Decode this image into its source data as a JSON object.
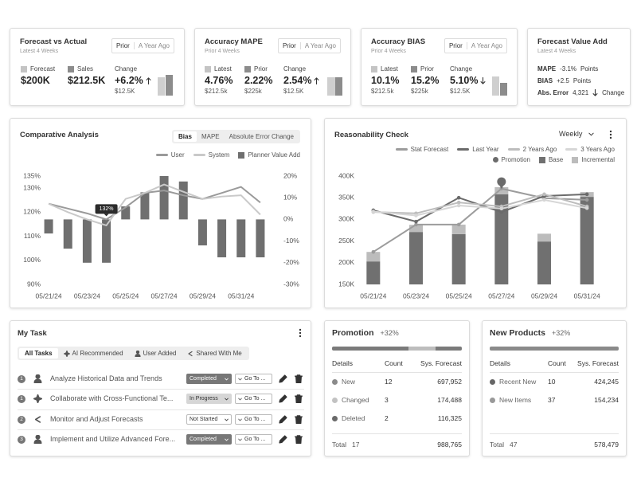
{
  "kpi_cards": [
    {
      "title": "Forecast vs Actual",
      "subtitle": "Latest 4 Weeks",
      "toggle": [
        "Prior",
        "A Year Ago"
      ],
      "metrics": [
        {
          "label": "Forecast",
          "value": "$200K"
        },
        {
          "label": "Sales",
          "value": "$212.5K"
        }
      ],
      "change": {
        "label": "Change",
        "value": "+6.2%",
        "sub": "$12.5K"
      }
    },
    {
      "title": "Accuracy MAPE",
      "subtitle": "Prior 4 Weeks",
      "toggle": [
        "Prior",
        "A Year Ago"
      ],
      "metrics": [
        {
          "label": "Latest",
          "value": "4.76%",
          "sub": "$212.5k"
        },
        {
          "label": "Prior",
          "value": "2.22%",
          "sub": "$225k"
        }
      ],
      "change": {
        "label": "Change",
        "value": "2.54%",
        "sub": "$12.5K"
      }
    },
    {
      "title": "Accuracy BIAS",
      "subtitle": "Prior 4 Weeks",
      "toggle": [
        "Prior",
        "A Year Ago"
      ],
      "metrics": [
        {
          "label": "Latest",
          "value": "10.1%",
          "sub": "$212.5k"
        },
        {
          "label": "Prior",
          "value": "15.2%",
          "sub": "$225k"
        }
      ],
      "change": {
        "label": "Change",
        "value": "5.10%",
        "sub": "$12.5K"
      }
    }
  ],
  "value_add": {
    "title": "Forecast Value Add",
    "subtitle": "Latest 4 Weeks",
    "rows": [
      {
        "label": "MAPE",
        "value": "-3.1%",
        "unit": "Points"
      },
      {
        "label": "BIAS",
        "value": "+2.5",
        "unit": "Points"
      },
      {
        "label": "Abs. Error",
        "value": "4,321",
        "unit": "Change"
      }
    ]
  },
  "comparative": {
    "title": "Comparative Analysis",
    "tabs": [
      "Bias",
      "MAPE",
      "Absolute Error Change"
    ],
    "chart": {
      "type": "combo",
      "categories": [
        "05/21/24",
        null,
        "05/23/24",
        null,
        "05/25/24",
        null,
        "05/27/24",
        null,
        "05/29/24",
        null,
        "05/31/24",
        null
      ],
      "ylim": [
        90,
        135
      ],
      "yticks": [
        {
          "value": 90,
          "label": "90%"
        },
        {
          "value": 100,
          "label": "100%"
        },
        {
          "value": 110,
          "label": "110%"
        },
        {
          "value": 120,
          "label": "120%"
        },
        {
          "value": 130,
          "label": "130%"
        },
        {
          "value": 135,
          "label": "135%"
        }
      ],
      "y2lim": [
        -30,
        20
      ],
      "y2ticks": [
        {
          "value": -30,
          "label": "-30%"
        },
        {
          "value": -20,
          "label": "-20%"
        },
        {
          "value": -10,
          "label": "-10%"
        },
        {
          "value": 0,
          "label": "0%"
        },
        {
          "value": 10,
          "label": "10%"
        },
        {
          "value": 20,
          "label": "20%"
        }
      ],
      "grid": false,
      "series": [
        {
          "name": "User",
          "type": "line",
          "color": "#9a9a9a",
          "values": [
            123.5,
            121.5,
            119.5,
            117,
            122,
            128,
            129,
            127,
            125.5,
            128,
            130.5,
            124
          ]
        },
        {
          "name": "System",
          "type": "line",
          "color": "#c9c9c9",
          "values": [
            123.5,
            120,
            117,
            114.5,
            125.5,
            128,
            131.5,
            128.5,
            125.5,
            126.5,
            127,
            119
          ]
        },
        {
          "name": "Planner Value Add",
          "type": "bar",
          "axis": "y2",
          "color": "#6f6f6f",
          "values": [
            -6.5,
            -13.5,
            -20,
            -20,
            6,
            12.5,
            20,
            17.5,
            -12,
            -17.5,
            -17.5,
            -17.5
          ]
        }
      ],
      "tooltip": "132%"
    }
  },
  "reasonability": {
    "title": "Reasonability Check",
    "period": "Weekly",
    "chart": {
      "type": "combo",
      "categories": [
        "05/21/24",
        "05/23/24",
        "05/25/24",
        "05/27/24",
        "05/29/24",
        "05/31/24"
      ],
      "ylim": [
        150,
        400
      ],
      "yticks": [
        {
          "value": 150,
          "label": "150K"
        },
        {
          "value": 200,
          "label": "200K"
        },
        {
          "value": 250,
          "label": "250K"
        },
        {
          "value": 300,
          "label": "300K"
        },
        {
          "value": 350,
          "label": "350K"
        },
        {
          "value": 400,
          "label": "400K"
        }
      ],
      "grid": false,
      "series": [
        {
          "name": "Stat Forecast",
          "type": "line",
          "color": "#9c9c9c",
          "markers": true,
          "values": [
            225,
            288,
            288,
            371,
            349,
            345
          ]
        },
        {
          "name": "Last Year",
          "type": "line",
          "color": "#6b6b6b",
          "markers": true,
          "values": [
            321,
            295,
            350,
            317,
            354,
            358
          ]
        },
        {
          "name": "2 Years Ago",
          "type": "line",
          "color": "#bdbdbd",
          "markers": true,
          "values": [
            317,
            314,
            339,
            330,
            358,
            330
          ]
        },
        {
          "name": "3 Years Ago",
          "type": "line",
          "color": "#d6d6d6",
          "markers": true,
          "values": [
            318,
            309,
            332,
            325,
            345,
            326
          ]
        },
        {
          "name": "Promotion",
          "type": "marker",
          "color": "#6b6b6b",
          "values": [
            null,
            null,
            null,
            387,
            null,
            null
          ]
        },
        {
          "name": "Base",
          "type": "bar",
          "color": "#707070",
          "values": [
            203,
            271,
            266,
            358,
            249,
            352
          ]
        },
        {
          "name": "Incremental",
          "type": "bar",
          "color": "#bcbcbc",
          "values": [
            22,
            16.5,
            22,
            16.5,
            18,
            11
          ]
        }
      ]
    }
  },
  "tasks": {
    "title": "My Task",
    "tabs": [
      "All Tasks",
      "AI Recommended",
      "User Added",
      "Shared With Me"
    ],
    "rows": [
      {
        "priority": "1",
        "title": "Analyze Historical Data and Trends",
        "status": "Completed",
        "action": "Go To ..."
      },
      {
        "priority": "1",
        "title": "Collaborate with Cross-Functional Te...",
        "status": "In Progress",
        "action": "Go To ..."
      },
      {
        "priority": "2",
        "title": "Monitor and Adjust Forecasts",
        "status": "Not Started",
        "action": "Go To ..."
      },
      {
        "priority": "3",
        "title": "Implement and Utilize Advanced Fore...",
        "status": "Completed",
        "action": "Go To ..."
      }
    ]
  },
  "promotion": {
    "title": "Promotion",
    "change": "+32%",
    "columns": [
      "Details",
      "Count",
      "Sys. Forecast"
    ],
    "rows": [
      [
        "New",
        "12",
        "697,952"
      ],
      [
        "Changed",
        "3",
        "174,488"
      ],
      [
        "Deleted",
        "2",
        "116,325"
      ]
    ],
    "total": [
      "Total",
      "17",
      "988,765"
    ]
  },
  "new_products": {
    "title": "New Products",
    "change": "+32%",
    "columns": [
      "Details",
      "Count",
      "Sys. Forecast"
    ],
    "rows": [
      [
        "Recent New",
        "10",
        "424,245"
      ],
      [
        "New Items",
        "37",
        "154,234"
      ]
    ],
    "total": [
      "Total",
      "47",
      "578,479"
    ]
  }
}
